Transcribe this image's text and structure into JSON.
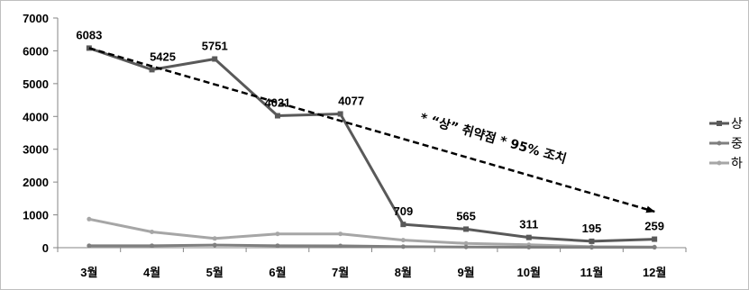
{
  "chart_data": {
    "type": "line",
    "categories": [
      "3월",
      "4월",
      "5월",
      "6월",
      "7월",
      "8월",
      "9월",
      "10월",
      "11월",
      "12월"
    ],
    "series": [
      {
        "name": "상",
        "values": [
          6083,
          5425,
          5751,
          4021,
          4077,
          709,
          565,
          311,
          195,
          259
        ],
        "color": "#595959",
        "show_labels": true
      },
      {
        "name": "중",
        "values": [
          60,
          60,
          80,
          60,
          55,
          30,
          20,
          15,
          10,
          10
        ],
        "color": "#7f7f7f",
        "show_labels": false
      },
      {
        "name": "하",
        "values": [
          870,
          480,
          280,
          420,
          420,
          230,
          130,
          90,
          30,
          20
        ],
        "color": "#a6a6a6",
        "show_labels": false
      }
    ],
    "ylim": [
      0,
      7000
    ],
    "yticks": [
      0,
      1000,
      2000,
      3000,
      4000,
      5000,
      6000,
      7000
    ],
    "grid": false,
    "legend_position": "right",
    "annotation": {
      "text": "* “상” 취약점 * 95% 조치",
      "arrow_from": {
        "category": "3월",
        "value": 6083
      },
      "arrow_to": {
        "category": "12월",
        "value": 1100
      }
    }
  }
}
